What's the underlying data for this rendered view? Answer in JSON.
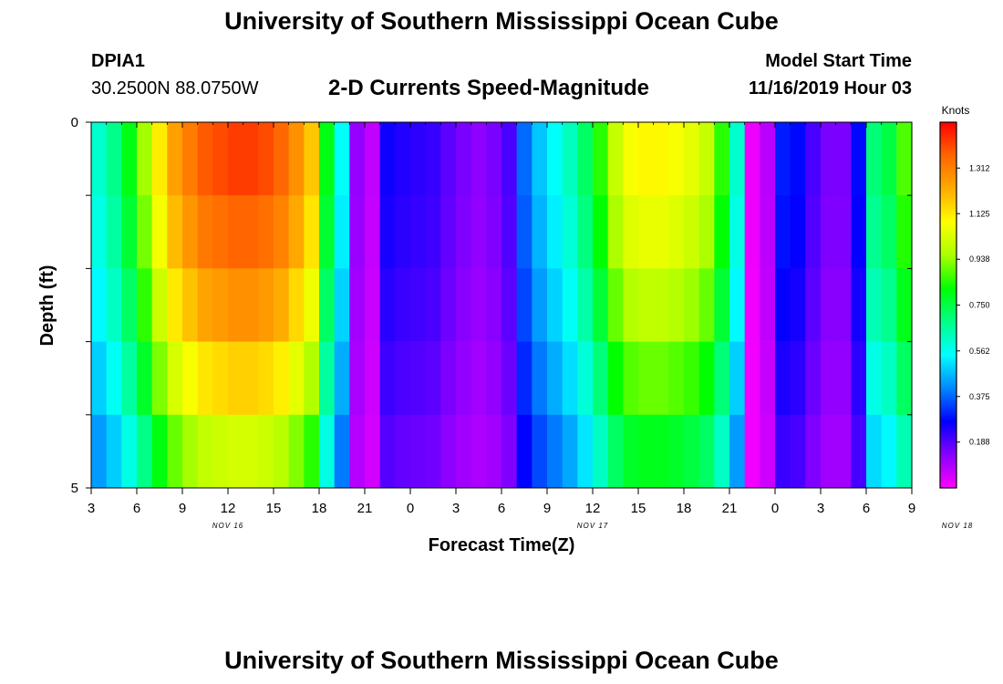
{
  "title": "University of Southern Mississippi Ocean Cube",
  "footer_title": "University of Southern Mississippi Ocean Cube",
  "station": {
    "id": "DPIA1",
    "coords": "30.2500N 88.0750W"
  },
  "model": {
    "label": "Model Start Time",
    "value": "11/16/2019 Hour 03"
  },
  "chart_data": {
    "type": "heatmap",
    "title": "2-D Currents Speed-Magnitude",
    "xlabel": "Forecast Time(Z)",
    "ylabel": "Depth (ft)",
    "ylim": [
      0,
      5
    ],
    "y_tick_labels": [
      "0",
      "5"
    ],
    "x_tick_labels": [
      "3",
      "6",
      "9",
      "12",
      "15",
      "18",
      "21",
      "0",
      "3",
      "6",
      "9",
      "12",
      "15",
      "18",
      "21",
      "0",
      "3",
      "6",
      "9"
    ],
    "date_labels": [
      {
        "label": "NOV 16",
        "hour_offset": 9
      },
      {
        "label": "NOV 17",
        "hour_offset": 33
      },
      {
        "label": "NOV 18",
        "hour_offset": 57
      }
    ],
    "time_range_hours": [
      0,
      54
    ],
    "time_step_hours": 1,
    "depth_layers": 5,
    "colorbar": {
      "unit": "Knots",
      "ticks": [
        "0.188",
        "0.375",
        "0.562",
        "0.750",
        "0.938",
        "1.125",
        "1.312"
      ],
      "range": [
        0,
        1.5
      ],
      "colors": [
        "#ff00ff",
        "#8800ff",
        "#0000ff",
        "#0088ff",
        "#00ffff",
        "#00ff88",
        "#00ff00",
        "#aaff00",
        "#ffff00",
        "#ffaa00",
        "#ff6600",
        "#ff0000"
      ]
    },
    "surface_profile": [
      0.6,
      0.68,
      0.8,
      0.95,
      1.12,
      1.25,
      1.32,
      1.38,
      1.4,
      1.42,
      1.42,
      1.4,
      1.36,
      1.28,
      1.18,
      0.8,
      0.55,
      0.12,
      0.07,
      0.26,
      0.24,
      0.23,
      0.22,
      0.18,
      0.15,
      0.13,
      0.15,
      0.2,
      0.38,
      0.48,
      0.55,
      0.62,
      0.72,
      0.85,
      1.0,
      1.08,
      1.1,
      1.1,
      1.08,
      1.05,
      1.0,
      0.85,
      0.6,
      0.02,
      0.08,
      0.3,
      0.28,
      0.2,
      0.15,
      0.15,
      0.28,
      0.7,
      0.75,
      0.88,
      0.95
    ],
    "depth_factors": [
      1.0,
      0.96,
      0.9,
      0.82,
      0.72
    ]
  }
}
